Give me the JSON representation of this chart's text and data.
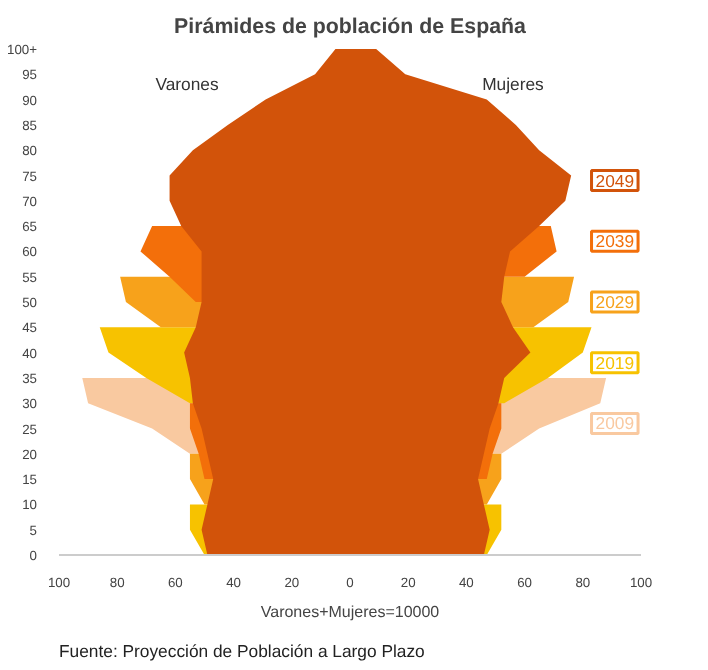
{
  "chart_data": {
    "type": "area",
    "orientation": "horizontal",
    "title": "Pirámides de población de España",
    "xlabel": "Varones+Mujeres=10000",
    "x": [
      0,
      5,
      10,
      15,
      20,
      25,
      30,
      35,
      40,
      45,
      50,
      55,
      60,
      65,
      70,
      75,
      80,
      85,
      90,
      95,
      100
    ],
    "xlim": [
      -100,
      100
    ],
    "xticks": [
      {
        "value": -100,
        "label": "100"
      },
      {
        "value": -80,
        "label": "80"
      },
      {
        "value": -60,
        "label": "60"
      },
      {
        "value": -40,
        "label": "40"
      },
      {
        "value": -20,
        "label": "20"
      },
      0,
      20,
      40,
      60,
      80,
      100
    ],
    "ylim": [
      0,
      100
    ],
    "yticks": [
      0,
      5,
      10,
      15,
      20,
      25,
      30,
      35,
      40,
      45,
      50,
      55,
      60,
      65,
      70,
      75,
      80,
      85,
      90,
      95,
      {
        "value": 100,
        "label": "100+"
      }
    ],
    "grid": false,
    "annotations": [
      "Varones",
      "Mujeres",
      "Fuente: Proyección de Población a Largo Plazo"
    ],
    "series": [
      {
        "color": "#f9c9a0",
        "values": [
          null,
          null,
          null,
          null,
          -55,
          -68,
          -90,
          -92,
          null,
          null,
          null,
          null,
          null,
          null,
          null,
          null,
          null,
          null,
          null,
          null,
          null
        ]
      },
      {
        "name": "2009",
        "color": "#f9c9a0",
        "values": [
          null,
          null,
          null,
          null,
          52,
          65,
          86,
          88,
          null,
          null,
          null,
          null,
          null,
          null,
          null,
          null,
          null,
          null,
          null,
          null,
          null
        ]
      },
      {
        "color": "#f7c200",
        "values": [
          -50,
          -55,
          -55,
          null,
          null,
          null,
          -55,
          -70,
          -83,
          -86,
          null,
          null,
          null,
          null,
          null,
          null,
          null,
          null,
          null,
          null,
          null
        ]
      },
      {
        "name": "2019",
        "color": "#f7c200",
        "values": [
          47,
          52,
          52,
          null,
          null,
          null,
          53,
          68,
          80,
          83,
          null,
          null,
          null,
          null,
          null,
          null,
          null,
          null,
          null,
          null,
          null
        ]
      },
      {
        "color": "#f7a21b",
        "values": [
          null,
          null,
          -50,
          -55,
          -55,
          null,
          null,
          null,
          null,
          -65,
          -77,
          -79,
          null,
          null,
          null,
          null,
          null,
          null,
          null,
          null,
          null
        ]
      },
      {
        "name": "2029",
        "color": "#f7a21b",
        "values": [
          null,
          null,
          47,
          52,
          52,
          null,
          null,
          null,
          null,
          63,
          75,
          77,
          null,
          null,
          null,
          null,
          null,
          null,
          null,
          null,
          null
        ]
      },
      {
        "color": "#f36f0a",
        "values": [
          null,
          null,
          null,
          -50,
          -52,
          -55,
          -55,
          null,
          null,
          null,
          -53,
          -62,
          -72,
          -68,
          null,
          null,
          null,
          null,
          null,
          null,
          null
        ]
      },
      {
        "name": "2039",
        "color": "#f36f0a",
        "values": [
          null,
          null,
          null,
          47,
          49,
          52,
          52,
          null,
          null,
          null,
          null,
          60,
          71,
          69,
          null,
          null,
          null,
          null,
          null,
          null,
          null
        ]
      },
      {
        "color": "#d2530a",
        "values": [
          -49,
          -51,
          -49,
          -47,
          -49,
          -51,
          -54,
          -55,
          -57,
          -53,
          -51,
          -51,
          -51,
          -58,
          -62,
          -62,
          -54,
          -42,
          -29,
          -12,
          -5
        ]
      },
      {
        "name": "2049",
        "color": "#d2530a",
        "values": [
          46,
          48,
          46,
          44,
          46,
          48,
          51,
          53,
          62,
          56,
          52,
          53,
          55,
          65,
          74,
          76,
          65,
          57,
          47,
          19,
          9
        ]
      }
    ]
  }
}
